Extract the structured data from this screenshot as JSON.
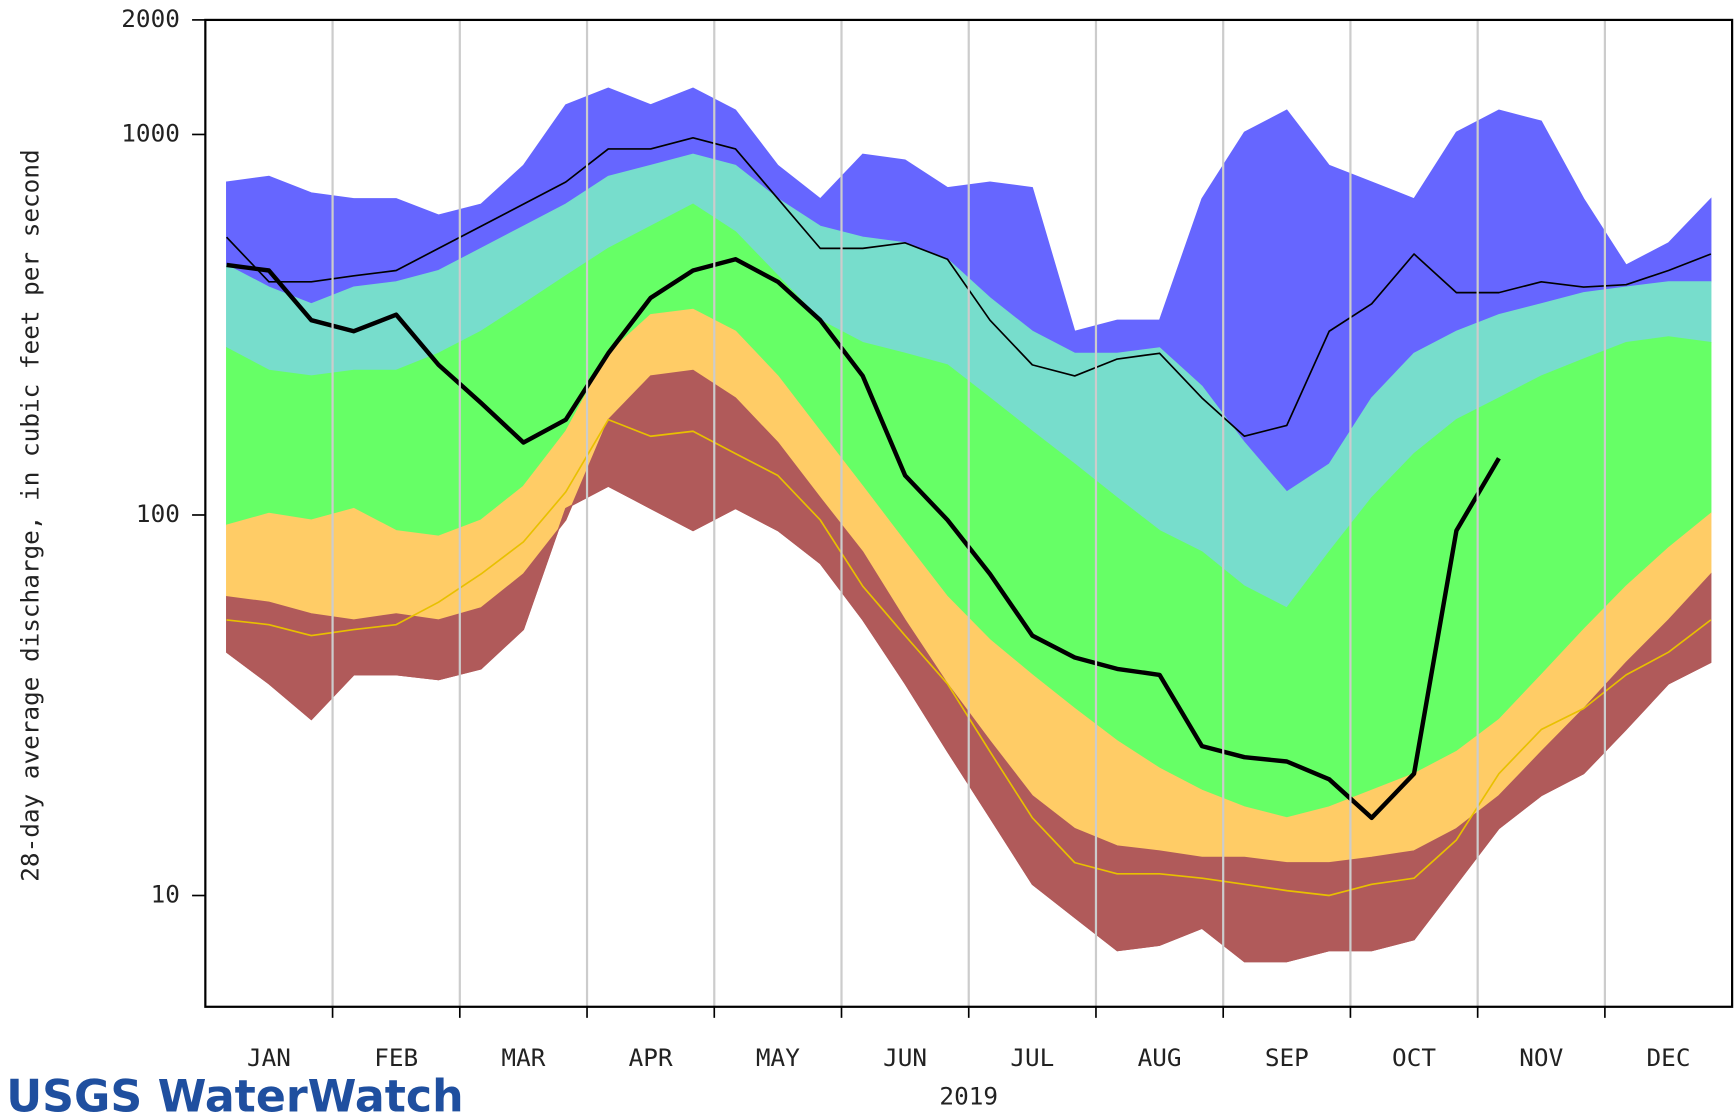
{
  "chart_data": {
    "type": "band",
    "ylabel": "28-day average discharge, in cubic feet per second",
    "xlabel": "2019",
    "logo": "USGS WaterWatch",
    "categories": [
      null,
      "JAN",
      null,
      null,
      "FEB",
      null,
      null,
      "MAR",
      null,
      null,
      "APR",
      null,
      null,
      "MAY",
      null,
      null,
      "JUN",
      null,
      null,
      "JUL",
      null,
      null,
      "AUG",
      null,
      null,
      "SEP",
      null,
      null,
      "OCT",
      null,
      null,
      "NOV",
      null,
      null,
      "DEC",
      null
    ],
    "log_scale": true,
    "ylim": [
      5.1,
      2000
    ],
    "yticks": [
      10,
      100,
      1000,
      2000
    ],
    "grid": true,
    "series": [
      {
        "style": "band",
        "color": "#6666ff",
        "values": [
          750,
          776,
          702,
          678,
          678,
          614,
          656,
          829,
          1197,
          1324,
          1197,
          1324,
          1159,
          829,
          678,
          887,
          857,
          725,
          750,
          725,
          304,
          325,
          325,
          678,
          1014,
          1159,
          829,
          750,
          678,
          1014,
          1159,
          1084,
          678,
          454,
          519,
          678
        ]
      },
      {
        "style": "band",
        "color": "#77ddcc",
        "values": [
          454,
          397,
          359,
          397,
          410,
          439,
          502,
          574,
          656,
          776,
          829,
          887,
          829,
          678,
          574,
          537,
          519,
          470,
          372,
          304,
          266,
          266,
          275,
          218,
          155,
          115,
          136,
          203,
          266,
          304,
          336,
          359,
          384,
          397,
          410,
          410
        ]
      },
      {
        "style": "band",
        "color": "#66ff66",
        "values": [
          275,
          240,
          232,
          240,
          240,
          266,
          304,
          359,
          425,
          502,
          574,
          656,
          555,
          425,
          325,
          284,
          266,
          248,
          203,
          166,
          136,
          111,
          91,
          80,
          65,
          57,
          80,
          111,
          145,
          178,
          203,
          232,
          257,
          284,
          294,
          284
        ]
      },
      {
        "style": "band",
        "color": "#ffcc66",
        "values": [
          94,
          101,
          97,
          104,
          91,
          88,
          97,
          119,
          166,
          266,
          336,
          347,
          304,
          232,
          166,
          119,
          85,
          61,
          47,
          38,
          31,
          25.5,
          21.6,
          18.9,
          17.1,
          16,
          17.1,
          18.9,
          20.9,
          23.9,
          29,
          38,
          50,
          65,
          82,
          101
        ]
      },
      {
        "style": "band",
        "color": "#b05a5a",
        "values": [
          61,
          59,
          55,
          53,
          55,
          53,
          57,
          70,
          97,
          178,
          232,
          240,
          203,
          155,
          111,
          80,
          53,
          36,
          25.5,
          18.3,
          15,
          13.5,
          13.1,
          12.6,
          12.6,
          12.2,
          12.2,
          12.6,
          13.1,
          15,
          18.3,
          23.9,
          31,
          41,
          53,
          70
        ]
      },
      {
        "style": "line",
        "width": 1,
        "color": "#b05a5a",
        "values": [
          43.6,
          36,
          29,
          38,
          38,
          36.9,
          39.4,
          50,
          104,
          119,
          104,
          91,
          104,
          91,
          74.5,
          53,
          36,
          23.9,
          16,
          10.7,
          8.75,
          7.16,
          7.4,
          8.2,
          6.7,
          6.7,
          7.16,
          7.16,
          7.65,
          10.7,
          15,
          18.3,
          20.9,
          27.3,
          36,
          41
        ]
      },
      {
        "style": "line",
        "width": 1.5,
        "color": "#000000",
        "values": [
          537,
          410,
          410,
          425,
          439,
          502,
          574,
          656,
          750,
          916,
          916,
          980,
          916,
          678,
          502,
          502,
          519,
          470,
          325,
          248,
          232,
          257,
          266,
          203,
          161,
          172,
          304,
          359,
          485,
          384,
          384,
          410,
          397,
          403,
          439,
          485
        ]
      },
      {
        "style": "line",
        "width": 1.5,
        "color": "#e8c000",
        "values": [
          53,
          51.5,
          48.2,
          50,
          51.5,
          59,
          70,
          85,
          115,
          178,
          161,
          166,
          145,
          127,
          97,
          65,
          48.2,
          36,
          23.9,
          16,
          12.2,
          11.4,
          11.4,
          11.1,
          10.7,
          10.3,
          10,
          10.7,
          11.1,
          14,
          20.9,
          27.3,
          31,
          38,
          43.6,
          53
        ]
      },
      {
        "style": "line",
        "width": 4,
        "color": "#000000",
        "values": [
          454,
          439,
          325,
          304,
          336,
          248,
          197,
          155,
          178,
          266,
          372,
          439,
          470,
          410,
          325,
          232,
          127,
          97,
          70,
          48.2,
          42.2,
          39.4,
          38,
          24.7,
          23.1,
          22.5,
          20.2,
          16,
          20.9,
          91,
          141,
          null,
          null,
          null,
          null,
          null
        ]
      }
    ]
  }
}
